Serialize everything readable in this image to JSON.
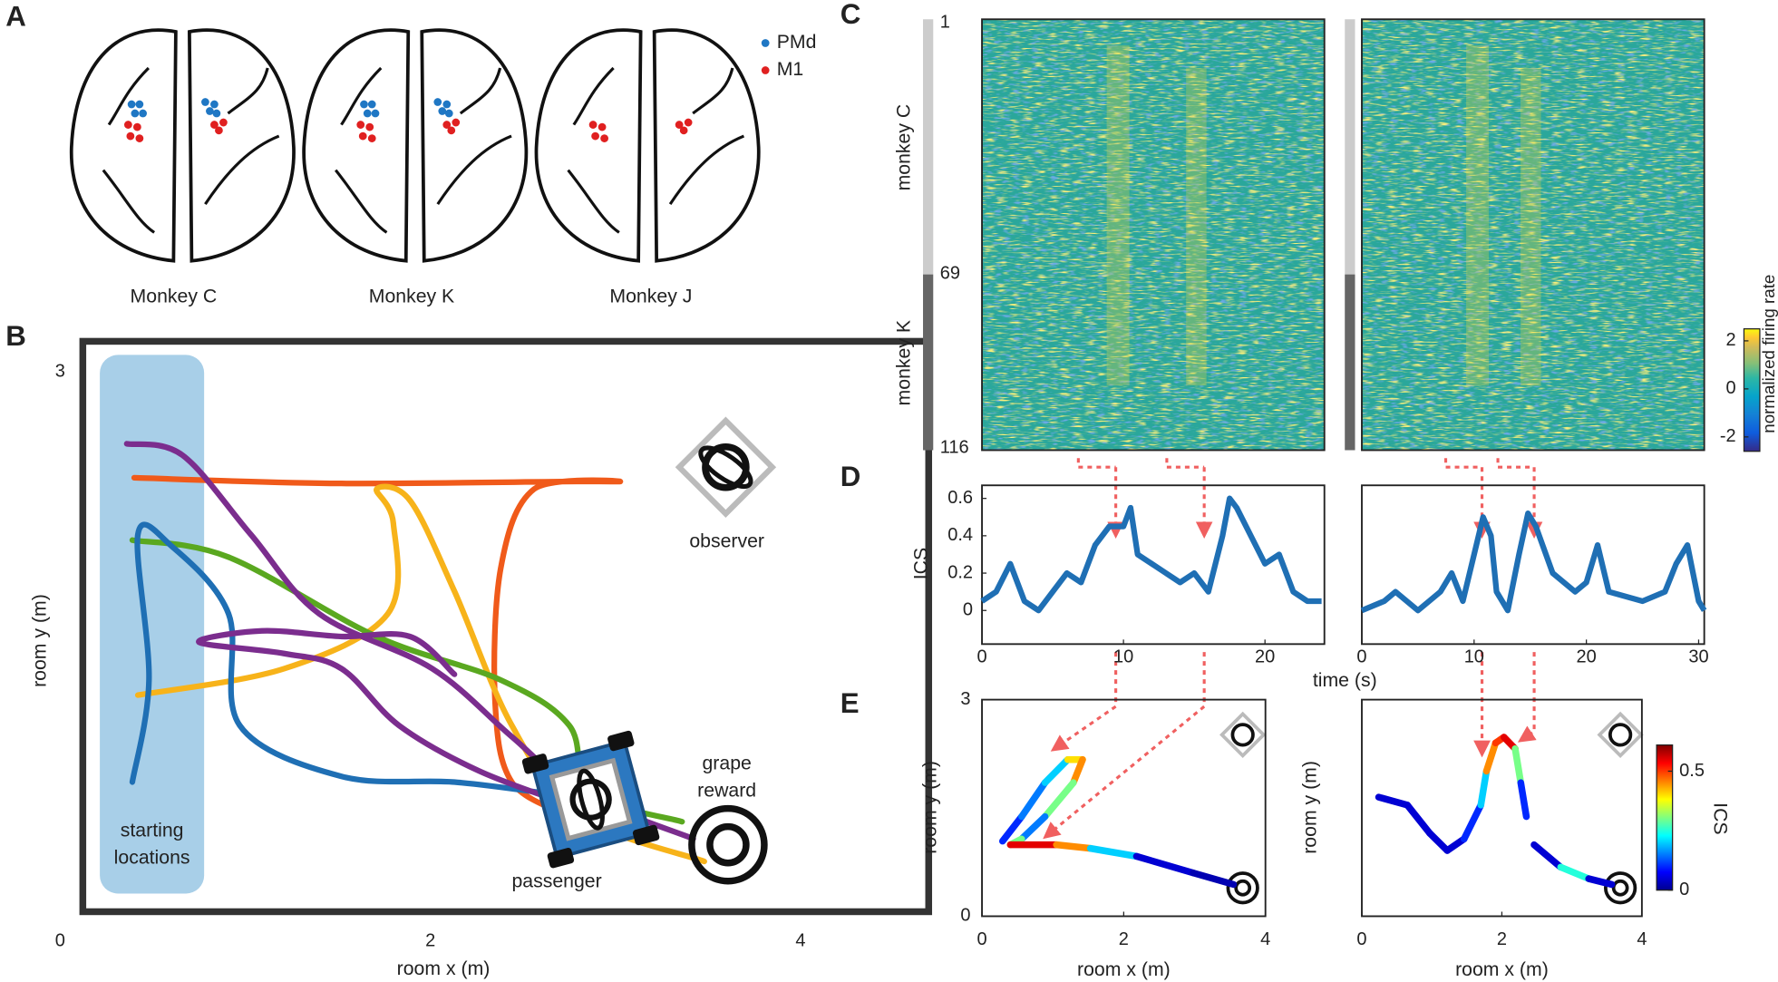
{
  "panels": {
    "A": "A",
    "B": "B",
    "C": "C",
    "D": "D",
    "E": "E"
  },
  "brains": {
    "captions": [
      "Monkey C",
      "Monkey K",
      "Monkey J"
    ],
    "legend": [
      "PMd",
      "M1"
    ]
  },
  "arena": {
    "type": "line",
    "xlabel": "room x (m)",
    "ylabel": "room y (m)",
    "xlim": [
      0,
      4
    ],
    "ylim": [
      0,
      3
    ],
    "xticks": [
      0,
      2,
      4
    ],
    "yticks": [
      3
    ],
    "start_label": [
      "starting",
      "locations"
    ],
    "observer": "observer",
    "reward": [
      "grape",
      "reward"
    ],
    "passenger": "passenger",
    "series": [
      {
        "color": "#f05a1a",
        "x": [
          0.4,
          1.52,
          2.99,
          2.56,
          2.38,
          2.35,
          2.44,
          2.75
        ],
        "y": [
          2.44,
          2.41,
          2.42,
          2.38,
          1.96,
          1.25,
          0.83,
          0.65
        ]
      },
      {
        "color": "#f7b31a",
        "x": [
          0.42,
          1.21,
          1.77,
          1.8,
          1.71,
          1.89,
          2.13,
          2.44,
          2.81,
          3.48
        ],
        "y": [
          1.29,
          1.43,
          1.72,
          2.2,
          2.38,
          2.32,
          1.84,
          1.13,
          0.65,
          0.41
        ]
      },
      {
        "color": "#5aa820",
        "x": [
          0.39,
          0.91,
          1.71,
          2.38,
          2.75,
          2.87,
          3.36
        ],
        "y": [
          2.11,
          2.02,
          1.6,
          1.37,
          1.13,
          0.77,
          0.62
        ]
      },
      {
        "color": "#1f6fb4",
        "x": [
          0.39,
          0.48,
          0.42,
          0.6,
          0.91,
          0.97,
          1.52,
          2.13,
          2.63
        ],
        "y": [
          0.83,
          1.37,
          2.14,
          2.08,
          1.72,
          1.13,
          0.86,
          0.83,
          0.77
        ]
      },
      {
        "color": "#7b2d8e",
        "x": [
          0.36,
          0.66,
          1.03,
          1.4,
          2.01,
          2.44,
          2.81,
          3.42
        ],
        "y": [
          2.62,
          2.56,
          2.14,
          1.72,
          1.43,
          1.07,
          0.77,
          0.53
        ]
      },
      {
        "color": "#7b2d8e",
        "x": [
          2.13,
          1.89,
          1.52,
          1.09,
          0.75,
          1.21,
          1.52,
          1.83,
          2.26,
          2.75
        ],
        "y": [
          1.4,
          1.6,
          1.6,
          1.63,
          1.57,
          1.51,
          1.43,
          1.13,
          0.89,
          0.71
        ]
      }
    ]
  },
  "heatmap": {
    "row_ticks": [
      1,
      69,
      116
    ],
    "groups": [
      "monkey C",
      "monkey K"
    ],
    "colorbar": {
      "label": "normalized firing rate",
      "lim": [
        -2.6,
        2.5
      ],
      "ticks": [
        -2,
        0,
        2
      ]
    }
  },
  "ics_xlabel": "time (s)",
  "ics": [
    {
      "type": "line",
      "ylabel": "ICS",
      "xlim": [
        0,
        24.2
      ],
      "ylim": [
        -0.18,
        0.67
      ],
      "xticks": [
        0,
        10,
        20
      ],
      "yticks": [
        0,
        0.2,
        0.4,
        0.6
      ],
      "x": [
        0,
        1,
        2,
        3,
        4,
        5,
        6,
        7,
        8,
        9,
        10,
        10.5,
        11,
        12,
        13,
        14,
        15,
        16,
        17,
        17.5,
        18,
        19,
        20,
        21,
        22,
        23,
        24
      ],
      "values": [
        0.05,
        0.1,
        0.25,
        0.05,
        0,
        0.1,
        0.2,
        0.15,
        0.35,
        0.45,
        0.45,
        0.55,
        0.3,
        0.25,
        0.2,
        0.15,
        0.2,
        0.1,
        0.4,
        0.6,
        0.55,
        0.4,
        0.25,
        0.3,
        0.1,
        0.05,
        0.05
      ]
    },
    {
      "type": "line",
      "xlim": [
        0,
        30.5
      ],
      "ylim": [
        -0.18,
        0.67
      ],
      "xticks": [
        0,
        10,
        20,
        30
      ],
      "x": [
        0,
        2,
        3,
        5,
        7,
        8,
        9,
        10,
        10.8,
        11.5,
        12,
        13,
        14,
        14.8,
        15.5,
        17,
        19,
        20,
        21,
        22,
        25,
        27,
        28,
        29,
        30,
        30.5
      ],
      "values": [
        0,
        0.05,
        0.1,
        0,
        0.1,
        0.2,
        0.05,
        0.3,
        0.5,
        0.4,
        0.1,
        0,
        0.3,
        0.52,
        0.45,
        0.2,
        0.1,
        0.15,
        0.35,
        0.1,
        0.05,
        0.1,
        0.25,
        0.35,
        0.05,
        0
      ]
    }
  ],
  "traj": [
    {
      "type": "line",
      "xlabel": "room x (m)",
      "ylabel": "room y (m)",
      "xlim": [
        0,
        4
      ],
      "ylim": [
        0,
        3
      ],
      "xticks": [
        0,
        2,
        4
      ],
      "yticks": [
        0,
        3
      ],
      "x": [
        0.29,
        0.56,
        0.89,
        1.21,
        1.42,
        1.29,
        0.89,
        0.56,
        0.4,
        1.05,
        1.53,
        2.18,
        2.98,
        3.55
      ],
      "y": [
        1.04,
        1.38,
        1.85,
        2.17,
        2.17,
        1.85,
        1.38,
        1.07,
        0.99,
        0.99,
        0.94,
        0.83,
        0.6,
        0.44
      ],
      "ics": [
        0.1,
        0.15,
        0.2,
        0.4,
        0.45,
        0.3,
        0.15,
        0.3,
        0.55,
        0.45,
        0.2,
        0.05,
        0.03,
        0.02
      ]
    },
    {
      "type": "line",
      "xlabel": "room x (m)",
      "ylabel": "room y (m)",
      "xlim": [
        0,
        4
      ],
      "ylim": [
        0,
        3
      ],
      "xticks": [
        0,
        2,
        4
      ],
      "x": [
        0.24,
        0.65,
        0.97,
        1.22,
        1.46,
        1.7,
        1.78,
        1.91,
        2.03,
        2.19,
        2.27,
        2.35,
        null,
        2.46,
        2.84,
        3.24,
        3.57
      ],
      "y": [
        1.65,
        1.54,
        1.15,
        0.91,
        1.07,
        1.54,
        2.01,
        2.4,
        2.48,
        2.32,
        1.85,
        1.38,
        null,
        0.99,
        0.68,
        0.52,
        0.44
      ],
      "ics": [
        0.05,
        0.05,
        0.05,
        0.05,
        0.1,
        0.2,
        0.45,
        0.5,
        0.55,
        0.3,
        0.1,
        0.05,
        null,
        0.05,
        0.25,
        0.05,
        0.02
      ]
    }
  ],
  "traj_colorbar": {
    "label": "ICS",
    "lim": [
      0,
      0.61
    ],
    "ticks": [
      0,
      0.5
    ]
  }
}
